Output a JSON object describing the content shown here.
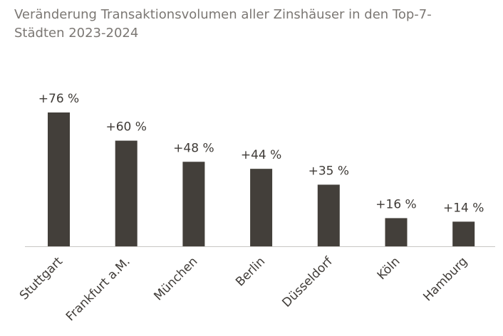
{
  "chart_data": {
    "type": "bar",
    "title": "Veränderung Transaktionsvolumen aller Zinshäuser in den Top-7-Städten 2023-2024",
    "categories": [
      "Stuttgart",
      "Frankfurt a.M.",
      "München",
      "Berlin",
      "Düsseldorf",
      "Köln",
      "Hamburg"
    ],
    "values": [
      76,
      60,
      48,
      44,
      35,
      16,
      14
    ],
    "data_labels": [
      "+76 %",
      "+60 %",
      "+48 %",
      "+44 %",
      "+35 %",
      "+16 %",
      "+14 %"
    ],
    "xlabel": "",
    "ylabel": "",
    "ylim": [
      0,
      76
    ],
    "grid": false,
    "bar_color": "#433f3a"
  }
}
